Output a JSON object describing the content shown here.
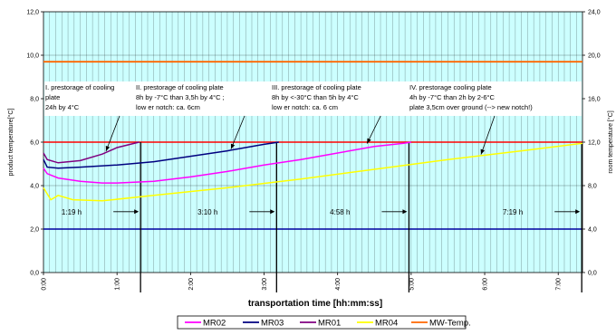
{
  "chart_data": {
    "type": "line",
    "xlabel": "transportation time [hh:mm:ss]",
    "ylabel": "product temperature[°C]",
    "y2label": "room temperature [°C]",
    "xlim": [
      0,
      7.33
    ],
    "ylim": [
      0,
      12
    ],
    "y2lim": [
      0,
      24
    ],
    "grid": true,
    "legend_position": "bottom",
    "x_ticks": [
      "0:00",
      "1:00",
      "2:00",
      "3:00",
      "4:00",
      "5:00",
      "6:00",
      "7:00"
    ],
    "y_ticks": [
      "0,0",
      "2,0",
      "4,0",
      "6,0",
      "8,0",
      "10,0",
      "12,0"
    ],
    "y2_ticks": [
      "0,0",
      "4,0",
      "8,0",
      "12,0",
      "16,0",
      "20,0",
      "24,0"
    ],
    "series": [
      {
        "name": "MR02",
        "color": "#ff00ff",
        "x": [
          0,
          0.05,
          0.2,
          0.5,
          0.8,
          1.0,
          1.5,
          2.0,
          2.5,
          3.0,
          3.5,
          4.0,
          4.5,
          4.9,
          5.0
        ],
        "y": [
          4.8,
          4.55,
          4.35,
          4.2,
          4.12,
          4.12,
          4.2,
          4.4,
          4.65,
          4.95,
          5.2,
          5.5,
          5.8,
          5.95,
          6.0
        ]
      },
      {
        "name": "MR03",
        "color": "#000080",
        "x": [
          0,
          0.05,
          0.2,
          0.5,
          1.0,
          1.5,
          2.0,
          2.5,
          3.0,
          3.2
        ],
        "y": [
          5.2,
          4.85,
          4.8,
          4.85,
          4.95,
          5.1,
          5.35,
          5.6,
          5.9,
          6.0
        ]
      },
      {
        "name": "MR01",
        "color": "#800080",
        "x": [
          0,
          0.05,
          0.2,
          0.5,
          0.8,
          1.0,
          1.3
        ],
        "y": [
          5.5,
          5.2,
          5.05,
          5.15,
          5.45,
          5.75,
          6.0
        ]
      },
      {
        "name": "MR04",
        "color": "#ffff00",
        "x": [
          0,
          0.1,
          0.2,
          0.4,
          0.8,
          1.5,
          2.5,
          3.5,
          4.5,
          5.5,
          6.5,
          7.33
        ],
        "y": [
          3.9,
          3.35,
          3.55,
          3.35,
          3.3,
          3.55,
          3.9,
          4.3,
          4.75,
          5.2,
          5.6,
          5.95
        ]
      },
      {
        "name": "MW-Temp.",
        "color": "#ff6600",
        "axis": "right",
        "x": [
          0,
          7.33
        ],
        "y": [
          19.4,
          19.4
        ]
      }
    ],
    "reference_lines": [
      {
        "axis": "left",
        "value": 6.0,
        "color": "#ff0000"
      },
      {
        "axis": "left",
        "value": 2.0,
        "color": "#0000a0"
      }
    ],
    "phase_markers": [
      {
        "label": "1:19 h",
        "x": 1.32
      },
      {
        "label": "3:10 h",
        "x": 3.17
      },
      {
        "label": "4:58 h",
        "x": 4.97
      },
      {
        "label": "7:19 h",
        "x": 7.32
      }
    ],
    "annotations": [
      {
        "lines": [
          "I. prestorage of cooling",
          "plate",
          "24h by 4°C"
        ],
        "target_x": 0.85,
        "target_y": 5.5
      },
      {
        "lines": [
          "II. prestorage of cooling plate",
          "8h by -7°C than 3,5h by 4°C ;",
          "low er notch: ca. 6cm"
        ],
        "target_x": 2.55,
        "target_y": 5.6
      },
      {
        "lines": [
          "III. prestorage of cooling plate",
          "8h by <-30°C than 5h by 4°C",
          "low er notch: ca. 6 cm"
        ],
        "target_x": 4.4,
        "target_y": 5.85
      },
      {
        "lines": [
          "IV. prestorage cooling plate",
          "4h by -7°C than 2h by 2-6°C",
          "plate 3,5cm over ground (--> new notch!)"
        ],
        "target_x": 5.95,
        "target_y": 5.35
      }
    ]
  }
}
